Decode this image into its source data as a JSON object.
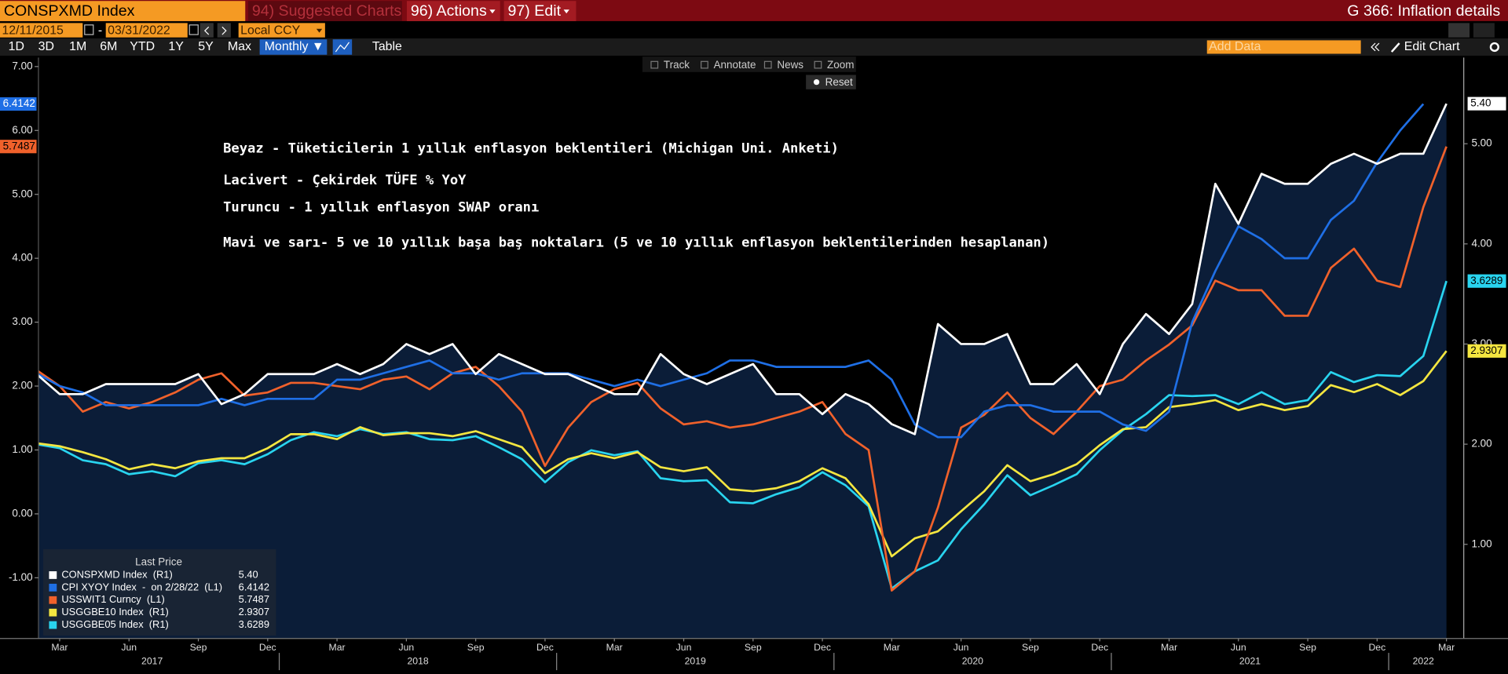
{
  "toolbar": {
    "ticker": "CONSPXMD Index",
    "suggested": "94) Suggested Charts",
    "actions": "96) Actions",
    "edit": "97) Edit",
    "page_title": "G 366: Inflation details"
  },
  "range": {
    "start": "12/11/2015",
    "separator": "-",
    "end": "03/31/2022",
    "currency": "Local CCY"
  },
  "periods": [
    "1D",
    "3D",
    "1M",
    "6M",
    "YTD",
    "1Y",
    "5Y",
    "Max"
  ],
  "frequency": "Monthly ▼",
  "table": "Table",
  "add_data": "Add Data",
  "edit_chart": "Edit Chart",
  "chart_tools": [
    "Track",
    "Annotate",
    "News",
    "Zoom"
  ],
  "reset": "Reset",
  "chart_data": {
    "type": "line",
    "annotations": [
      "Beyaz - Tüketicilerin 1 yıllık enflasyon beklentileri (Michigan Uni. Anketi)",
      "Lacivert - Çekirdek TÜFE % YoY",
      "Turuncu - 1 yıllık enflasyon SWAP oranı",
      "Mavi ve sarı- 5 ve 10 yıllık başa baş noktaları (5 ve 10 yıllık enflasyon beklentilerinden hesaplanan)"
    ],
    "legend_title": "Last Price",
    "categories": [
      null,
      "Mar",
      null,
      null,
      "Jun",
      null,
      null,
      "Sep",
      null,
      null,
      "Dec",
      null,
      null,
      "Mar",
      null,
      null,
      "Jun",
      null,
      null,
      "Sep",
      null,
      null,
      "Dec",
      null,
      null,
      "Mar",
      null,
      null,
      "Jun",
      null,
      null,
      "Sep",
      null,
      null,
      "Dec",
      null,
      null,
      "Mar",
      null,
      null,
      "Jun",
      null,
      null,
      "Sep",
      null,
      null,
      "Dec",
      null,
      null,
      "Mar",
      null,
      null,
      "Jun",
      null,
      null,
      "Sep",
      null,
      null,
      "Dec",
      null,
      null,
      "Mar"
    ],
    "years": [
      "2017",
      "2018",
      "2019",
      "2020",
      "2021",
      "2022"
    ],
    "ylim": [
      -1.95,
      7.14
    ],
    "yticks": [
      {
        "value": -1,
        "label": "-1.00"
      },
      {
        "value": 0,
        "label": "0.00"
      },
      {
        "value": 1,
        "label": "1.00"
      },
      {
        "value": 2,
        "label": "2.00"
      },
      {
        "value": 3,
        "label": "3.00"
      },
      {
        "value": 4,
        "label": "4.00"
      },
      {
        "value": 5,
        "label": "5.00"
      },
      {
        "value": 6,
        "label": "6.00"
      },
      {
        "value": 7,
        "label": "7.00"
      }
    ],
    "y2lim": [
      0.06,
      5.86
    ],
    "y2ticks": [
      {
        "value": 1,
        "label": "1.00"
      },
      {
        "value": 2,
        "label": "2.00"
      },
      {
        "value": 3,
        "label": "3.00"
      },
      {
        "value": 4,
        "label": "4.00"
      },
      {
        "value": 5,
        "label": "5.00"
      }
    ],
    "grid": false,
    "area_color": "#0b1d38",
    "series": [
      {
        "name": "CONSPXMD Index  (R1)",
        "color": "#ffffff",
        "axis": "y2",
        "area": true,
        "last_label": "5.40",
        "values": [
          2.7,
          2.5,
          2.5,
          2.6,
          2.6,
          2.6,
          2.6,
          2.7,
          2.4,
          2.5,
          2.7,
          2.7,
          2.7,
          2.8,
          2.7,
          2.8,
          3.0,
          2.9,
          3.0,
          2.7,
          2.9,
          2.8,
          2.7,
          2.7,
          2.6,
          2.5,
          2.5,
          2.9,
          2.7,
          2.6,
          2.7,
          2.8,
          2.5,
          2.5,
          2.3,
          2.5,
          2.4,
          2.2,
          2.1,
          3.2,
          3.0,
          3.0,
          3.1,
          2.6,
          2.6,
          2.8,
          2.5,
          3.0,
          3.3,
          3.1,
          3.4,
          4.6,
          4.2,
          4.7,
          4.6,
          4.6,
          4.8,
          4.9,
          4.8,
          4.9,
          4.9,
          5.4
        ]
      },
      {
        "name": "CPI XYOY Index  -  on 2/28/22  (L1)",
        "color": "#1f6fe5",
        "axis": "y",
        "last_label": "6.4142",
        "values": [
          2.2,
          2.0,
          1.9,
          1.7,
          1.7,
          1.7,
          1.7,
          1.7,
          1.8,
          1.7,
          1.8,
          1.8,
          1.8,
          2.1,
          2.1,
          2.2,
          2.3,
          2.4,
          2.2,
          2.2,
          2.1,
          2.2,
          2.2,
          2.2,
          2.1,
          2.0,
          2.1,
          2.0,
          2.1,
          2.2,
          2.4,
          2.4,
          2.3,
          2.3,
          2.3,
          2.3,
          2.4,
          2.1,
          1.4,
          1.2,
          1.2,
          1.6,
          1.7,
          1.7,
          1.6,
          1.6,
          1.6,
          1.4,
          1.3,
          1.6,
          3.0,
          3.8,
          4.5,
          4.3,
          4.0,
          4.0,
          4.6,
          4.9,
          5.5,
          6.0,
          6.4142,
          null
        ]
      },
      {
        "name": "USSWIT1 Curncy  (L1)",
        "color": "#f0612b",
        "axis": "y",
        "last_label": "5.7487",
        "values": [
          2.25,
          2.0,
          1.6,
          1.75,
          1.65,
          1.75,
          1.9,
          2.1,
          2.2,
          1.85,
          1.9,
          2.05,
          2.05,
          2.0,
          1.95,
          2.1,
          2.15,
          1.95,
          2.2,
          2.3,
          2.0,
          1.6,
          0.75,
          1.35,
          1.75,
          1.95,
          2.05,
          1.65,
          1.4,
          1.45,
          1.35,
          1.4,
          1.5,
          1.6,
          1.75,
          1.25,
          1.0,
          -1.2,
          -0.9,
          0.1,
          1.35,
          1.55,
          1.9,
          1.5,
          1.25,
          1.6,
          2.0,
          2.1,
          2.4,
          2.65,
          2.95,
          3.65,
          3.5,
          3.5,
          3.1,
          3.1,
          3.85,
          4.15,
          3.65,
          3.55,
          4.8,
          5.7487
        ]
      },
      {
        "name": "USGGBE10 Index  (R1)",
        "color": "#f4e640",
        "axis": "y2",
        "last_label": "2.9307",
        "values": [
          2.01,
          1.98,
          1.92,
          1.85,
          1.75,
          1.8,
          1.76,
          1.83,
          1.86,
          1.86,
          1.96,
          2.1,
          2.1,
          2.05,
          2.17,
          2.09,
          2.11,
          2.11,
          2.08,
          2.13,
          2.05,
          1.97,
          1.71,
          1.85,
          1.91,
          1.86,
          1.92,
          1.77,
          1.73,
          1.77,
          1.55,
          1.53,
          1.56,
          1.63,
          1.76,
          1.66,
          1.4,
          0.88,
          1.06,
          1.13,
          1.33,
          1.53,
          1.79,
          1.63,
          1.7,
          1.8,
          1.99,
          2.15,
          2.17,
          2.37,
          2.4,
          2.44,
          2.34,
          2.4,
          2.34,
          2.38,
          2.59,
          2.52,
          2.6,
          2.49,
          2.63,
          2.9307
        ]
      },
      {
        "name": "USGGBE05 Index  (R1)",
        "color": "#29d4ef",
        "axis": "y2",
        "last_label": "3.6289",
        "values": [
          2.0,
          1.96,
          1.84,
          1.8,
          1.7,
          1.73,
          1.68,
          1.81,
          1.84,
          1.8,
          1.9,
          2.04,
          2.12,
          2.08,
          2.15,
          2.1,
          2.12,
          2.05,
          2.04,
          2.08,
          1.97,
          1.85,
          1.62,
          1.82,
          1.94,
          1.89,
          1.93,
          1.66,
          1.63,
          1.64,
          1.42,
          1.41,
          1.5,
          1.57,
          1.72,
          1.59,
          1.38,
          0.56,
          0.73,
          0.84,
          1.15,
          1.4,
          1.69,
          1.49,
          1.59,
          1.7,
          1.94,
          2.14,
          2.3,
          2.49,
          2.48,
          2.49,
          2.4,
          2.52,
          2.4,
          2.44,
          2.72,
          2.62,
          2.69,
          2.68,
          2.88,
          3.6289
        ]
      }
    ]
  }
}
